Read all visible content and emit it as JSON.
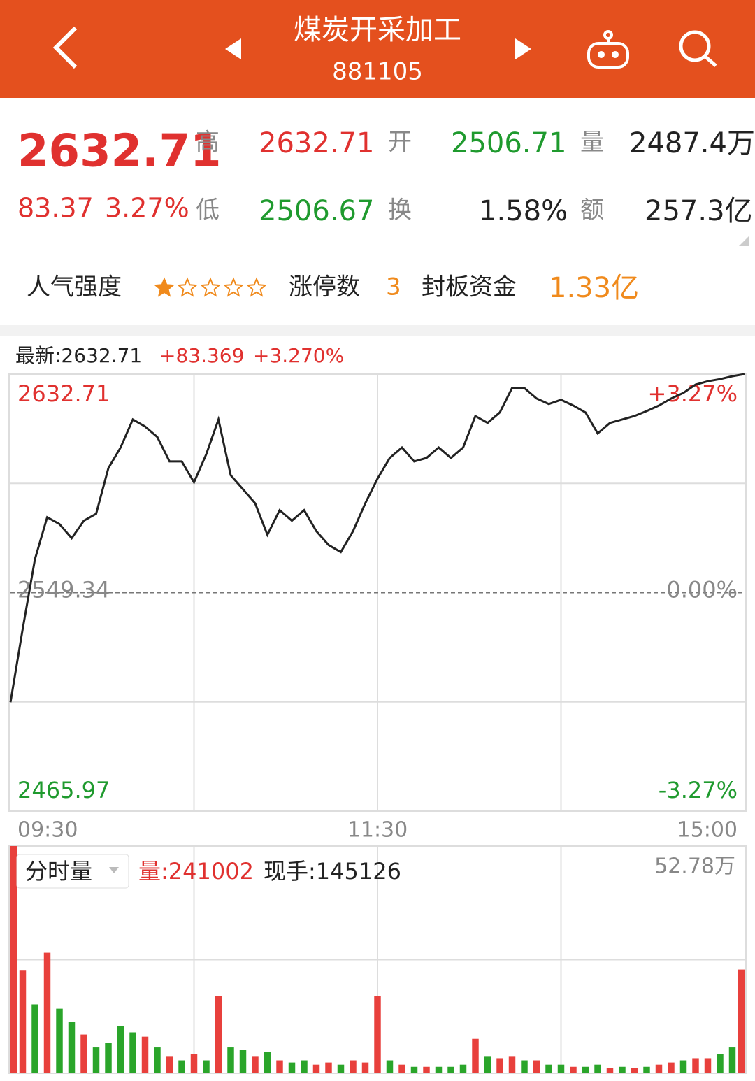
{
  "header": {
    "title": "煤炭开采加工",
    "code": "881105"
  },
  "quote": {
    "price": "2632.71",
    "change": "83.37",
    "change_pct": "3.27%",
    "stats": [
      {
        "label": "高",
        "value": "2632.71"
      },
      {
        "label": "开",
        "value": "2506.71"
      },
      {
        "label": "量",
        "value": "2487.4万"
      },
      {
        "label": "低",
        "value": "2506.67"
      },
      {
        "label": "换",
        "value": "1.58%"
      },
      {
        "label": "额",
        "value": "257.3亿"
      }
    ]
  },
  "popularity": {
    "label": "人气强度",
    "rating": 1,
    "rating_max": 5,
    "limit_up_label": "涨停数",
    "limit_up": "3",
    "seal_label": "封板资金",
    "seal": "1.33亿"
  },
  "chart_data": [
    {
      "type": "line",
      "header_items": [
        "最新:2632.71",
        "+83.369",
        "+3.270%"
      ],
      "color": "#222222",
      "x": [
        0,
        4,
        8,
        12,
        16,
        20,
        24,
        28,
        32,
        36,
        40,
        44,
        48,
        52,
        56,
        60,
        64,
        68,
        72,
        76,
        80,
        84,
        88,
        92,
        96,
        100,
        104,
        108,
        112,
        116,
        120,
        124,
        128,
        132,
        136,
        140,
        144,
        148,
        152,
        156,
        160,
        164,
        168,
        172,
        176,
        180,
        184,
        188,
        192,
        196,
        200,
        204,
        208,
        212,
        216,
        220,
        224,
        228,
        232,
        236,
        240
      ],
      "values": [
        2507.5,
        2535.5,
        2562.1,
        2578.1,
        2575.5,
        2570.1,
        2576.8,
        2579.4,
        2596.8,
        2604.7,
        2615.4,
        2612.7,
        2608.7,
        2599.4,
        2599.4,
        2591.4,
        2602.1,
        2615.4,
        2594.1,
        2588.8,
        2583.4,
        2571.4,
        2580.8,
        2576.8,
        2580.8,
        2572.8,
        2567.5,
        2564.8,
        2572.8,
        2583.4,
        2592.8,
        2600.7,
        2604.7,
        2599.4,
        2600.7,
        2604.7,
        2600.7,
        2604.7,
        2616.7,
        2614.1,
        2618.1,
        2627.4,
        2627.4,
        2623.4,
        2621.3,
        2622.9,
        2620.7,
        2618.1,
        2610.1,
        2614.1,
        2615.4,
        2616.7,
        2618.6,
        2620.7,
        2623.4,
        2625.5,
        2628.7,
        2630.0,
        2630.8,
        2631.9,
        2632.71
      ],
      "xlim": [
        0,
        240
      ],
      "xticks": [
        {
          "value": 0,
          "label": "09:30"
        },
        {
          "value": 120,
          "label": "11:30"
        },
        {
          "value": 240,
          "label": "15:00"
        }
      ],
      "ylim": [
        2465.97,
        2632.71
      ],
      "yticks": [
        2465.97,
        2549.34,
        2632.71
      ],
      "y2lim": [
        -3.27,
        3.27
      ],
      "y2ticks": [
        {
          "value": -3.27,
          "label": "-3.27%"
        },
        {
          "value": 0,
          "label": "0.00%"
        },
        {
          "value": 3.27,
          "label": "+3.27%"
        }
      ]
    },
    {
      "type": "bar",
      "title": "分时量",
      "annotations": [
        "量:241002",
        "现手:145126"
      ],
      "x": [
        0,
        4,
        8,
        12,
        16,
        20,
        24,
        28,
        32,
        36,
        40,
        44,
        48,
        52,
        56,
        60,
        64,
        68,
        72,
        76,
        80,
        84,
        88,
        92,
        96,
        100,
        104,
        108,
        112,
        116,
        120,
        124,
        128,
        132,
        136,
        140,
        144,
        148,
        152,
        156,
        160,
        164,
        168,
        172,
        176,
        180,
        184,
        188,
        192,
        196,
        200,
        204,
        208,
        212,
        216,
        220,
        224,
        228,
        232,
        236,
        240
      ],
      "values": [
        527800,
        240000,
        160000,
        280000,
        150000,
        120000,
        90000,
        60000,
        70000,
        110000,
        95000,
        85000,
        60000,
        40000,
        30000,
        45000,
        30000,
        180000,
        60000,
        55000,
        40000,
        50000,
        30000,
        25000,
        30000,
        20000,
        25000,
        20000,
        30000,
        25000,
        180000,
        30000,
        20000,
        15000,
        15000,
        15000,
        15000,
        20000,
        80000,
        40000,
        35000,
        40000,
        30000,
        30000,
        20000,
        20000,
        15000,
        15000,
        20000,
        12000,
        15000,
        12000,
        15000,
        20000,
        25000,
        30000,
        35000,
        35000,
        45000,
        60000,
        241002
      ],
      "colors": [
        "#e8403c",
        "#e8403c",
        "#2aa52a",
        "#e8403c",
        "#2aa52a",
        "#2aa52a",
        "#e8403c",
        "#2aa52a",
        "#2aa52a",
        "#2aa52a",
        "#2aa52a",
        "#e8403c",
        "#2aa52a",
        "#e8403c",
        "#2aa52a",
        "#e8403c",
        "#2aa52a",
        "#e8403c",
        "#2aa52a",
        "#2aa52a",
        "#e8403c",
        "#2aa52a",
        "#e8403c",
        "#2aa52a",
        "#2aa52a",
        "#e8403c",
        "#e8403c",
        "#2aa52a",
        "#e8403c",
        "#e8403c",
        "#e8403c",
        "#2aa52a",
        "#e8403c",
        "#2aa52a",
        "#e8403c",
        "#2aa52a",
        "#2aa52a",
        "#2aa52a",
        "#e8403c",
        "#2aa52a",
        "#e8403c",
        "#e8403c",
        "#2aa52a",
        "#e8403c",
        "#2aa52a",
        "#2aa52a",
        "#e8403c",
        "#2aa52a",
        "#2aa52a",
        "#e8403c",
        "#2aa52a",
        "#e8403c",
        "#2aa52a",
        "#e8403c",
        "#e8403c",
        "#2aa52a",
        "#e8403c",
        "#e8403c",
        "#2aa52a",
        "#2aa52a",
        "#e8403c"
      ],
      "xlim": [
        0,
        240
      ],
      "ylim": [
        0,
        527800
      ],
      "yticks": [
        {
          "value": 527800,
          "label": "52.78万"
        }
      ]
    }
  ]
}
